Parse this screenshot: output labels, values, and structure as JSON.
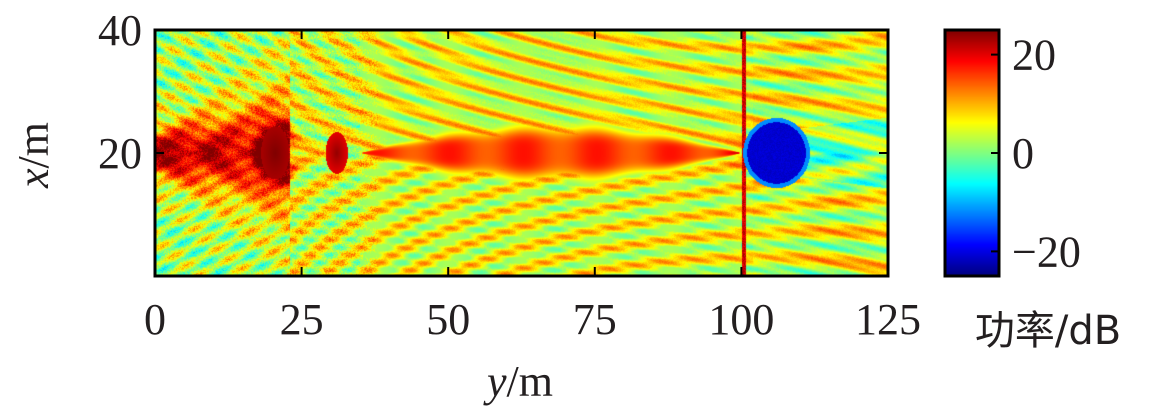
{
  "chart_data": {
    "type": "heatmap",
    "title": "",
    "xlabel_var": "y",
    "xlabel_unit": "/m",
    "ylabel_var": "x",
    "ylabel_unit": "/m",
    "xlim": [
      0,
      125
    ],
    "ylim": [
      0,
      40
    ],
    "x_ticks": [
      0,
      25,
      50,
      75,
      100,
      125
    ],
    "x_tick_labels": [
      "0",
      "25",
      "50",
      "75",
      "100",
      "125"
    ],
    "y_ticks": [
      20,
      40
    ],
    "y_tick_labels": [
      "20",
      "40"
    ],
    "colorbar": {
      "label": "功率/dB",
      "range": [
        -25,
        25
      ],
      "ticks": [
        -20,
        0,
        20
      ],
      "tick_labels": [
        "−20",
        "0",
        "20"
      ],
      "colormap": "jet"
    },
    "field_features": {
      "source_region_y": [
        0,
        23
      ],
      "source_region_level_db": 22,
      "obstacle_1": {
        "y": 20.5,
        "x": 20,
        "level_db": 25
      },
      "obstacle_2": {
        "y": 31,
        "x": 20,
        "level_db": 24
      },
      "main_beam": {
        "y_range": [
          35,
          100
        ],
        "x_center": 20,
        "level_db": 14
      },
      "shadow_obstacle": {
        "y": 106,
        "x": 20,
        "radius_m": 5,
        "level_db": -22
      },
      "boundary_line_y": 100.5
    }
  }
}
